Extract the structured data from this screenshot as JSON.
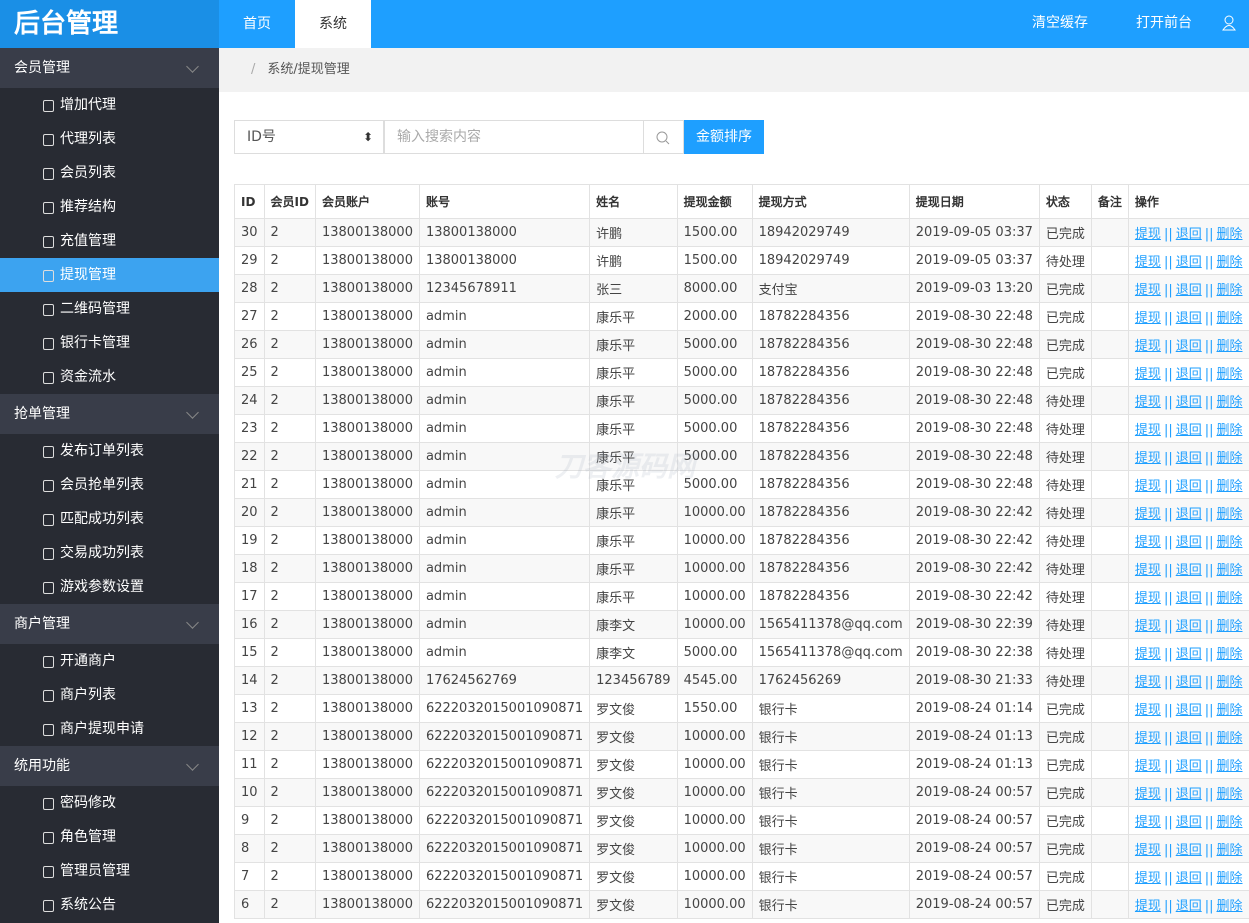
{
  "header": {
    "logo": "后台管理",
    "tabs": [
      "首页",
      "系统"
    ],
    "actions": [
      "清空缓存",
      "打开前台"
    ]
  },
  "sidebar": [
    {
      "title": "会员管理",
      "items": [
        "增加代理",
        "代理列表",
        "会员列表",
        "推荐结构",
        "充值管理",
        "提现管理",
        "二维码管理",
        "银行卡管理",
        "资金流水"
      ]
    },
    {
      "title": "抢单管理",
      "items": [
        "发布订单列表",
        "会员抢单列表",
        "匹配成功列表",
        "交易成功列表",
        "游戏参数设置"
      ]
    },
    {
      "title": "商户管理",
      "items": [
        "开通商户",
        "商户列表",
        "商户提现申请"
      ]
    },
    {
      "title": "统用功能",
      "items": [
        "密码修改",
        "角色管理",
        "管理员管理",
        "系统公告"
      ]
    }
  ],
  "breadcrumb": "系统/提现管理",
  "search": {
    "select": "ID号",
    "placeholder": "输入搜索内容",
    "button": "金额排序"
  },
  "watermark": "刀客源码网",
  "table": {
    "headers": [
      "ID",
      "会员ID",
      "会员账户",
      "账号",
      "姓名",
      "提现金额",
      "提现方式",
      "提现日期",
      "状态",
      "备注",
      "操作"
    ],
    "actions": [
      "提现",
      "退回",
      "删除"
    ],
    "separator": "||",
    "rows": [
      [
        "30",
        "2",
        "13800138000",
        "13800138000",
        "许鹏",
        "1500.00",
        "18942029749",
        "2019-09-05 03:37",
        "已完成"
      ],
      [
        "29",
        "2",
        "13800138000",
        "13800138000",
        "许鹏",
        "1500.00",
        "18942029749",
        "2019-09-05 03:37",
        "待处理"
      ],
      [
        "28",
        "2",
        "13800138000",
        "12345678911",
        "张三",
        "8000.00",
        "支付宝",
        "2019-09-03 13:20",
        "已完成"
      ],
      [
        "27",
        "2",
        "13800138000",
        "admin",
        "康乐平",
        "2000.00",
        "18782284356",
        "2019-08-30 22:48",
        "已完成"
      ],
      [
        "26",
        "2",
        "13800138000",
        "admin",
        "康乐平",
        "5000.00",
        "18782284356",
        "2019-08-30 22:48",
        "已完成"
      ],
      [
        "25",
        "2",
        "13800138000",
        "admin",
        "康乐平",
        "5000.00",
        "18782284356",
        "2019-08-30 22:48",
        "已完成"
      ],
      [
        "24",
        "2",
        "13800138000",
        "admin",
        "康乐平",
        "5000.00",
        "18782284356",
        "2019-08-30 22:48",
        "待处理"
      ],
      [
        "23",
        "2",
        "13800138000",
        "admin",
        "康乐平",
        "5000.00",
        "18782284356",
        "2019-08-30 22:48",
        "待处理"
      ],
      [
        "22",
        "2",
        "13800138000",
        "admin",
        "康乐平",
        "5000.00",
        "18782284356",
        "2019-08-30 22:48",
        "待处理"
      ],
      [
        "21",
        "2",
        "13800138000",
        "admin",
        "康乐平",
        "5000.00",
        "18782284356",
        "2019-08-30 22:48",
        "待处理"
      ],
      [
        "20",
        "2",
        "13800138000",
        "admin",
        "康乐平",
        "10000.00",
        "18782284356",
        "2019-08-30 22:42",
        "待处理"
      ],
      [
        "19",
        "2",
        "13800138000",
        "admin",
        "康乐平",
        "10000.00",
        "18782284356",
        "2019-08-30 22:42",
        "待处理"
      ],
      [
        "18",
        "2",
        "13800138000",
        "admin",
        "康乐平",
        "10000.00",
        "18782284356",
        "2019-08-30 22:42",
        "待处理"
      ],
      [
        "17",
        "2",
        "13800138000",
        "admin",
        "康乐平",
        "10000.00",
        "18782284356",
        "2019-08-30 22:42",
        "待处理"
      ],
      [
        "16",
        "2",
        "13800138000",
        "admin",
        "康李文",
        "10000.00",
        "1565411378@qq.com",
        "2019-08-30 22:39",
        "待处理"
      ],
      [
        "15",
        "2",
        "13800138000",
        "admin",
        "康李文",
        "5000.00",
        "1565411378@qq.com",
        "2019-08-30 22:38",
        "待处理"
      ],
      [
        "14",
        "2",
        "13800138000",
        "17624562769",
        "123456789",
        "4545.00",
        "1762456269",
        "2019-08-30 21:33",
        "待处理"
      ],
      [
        "13",
        "2",
        "13800138000",
        "6222032015001090871",
        "罗文俊",
        "1550.00",
        "银行卡",
        "2019-08-24 01:14",
        "已完成"
      ],
      [
        "12",
        "2",
        "13800138000",
        "6222032015001090871",
        "罗文俊",
        "10000.00",
        "银行卡",
        "2019-08-24 01:13",
        "已完成"
      ],
      [
        "11",
        "2",
        "13800138000",
        "6222032015001090871",
        "罗文俊",
        "10000.00",
        "银行卡",
        "2019-08-24 01:13",
        "已完成"
      ],
      [
        "10",
        "2",
        "13800138000",
        "6222032015001090871",
        "罗文俊",
        "10000.00",
        "银行卡",
        "2019-08-24 00:57",
        "已完成"
      ],
      [
        "9",
        "2",
        "13800138000",
        "6222032015001090871",
        "罗文俊",
        "10000.00",
        "银行卡",
        "2019-08-24 00:57",
        "已完成"
      ],
      [
        "8",
        "2",
        "13800138000",
        "6222032015001090871",
        "罗文俊",
        "10000.00",
        "银行卡",
        "2019-08-24 00:57",
        "已完成"
      ],
      [
        "7",
        "2",
        "13800138000",
        "6222032015001090871",
        "罗文俊",
        "10000.00",
        "银行卡",
        "2019-08-24 00:57",
        "已完成"
      ],
      [
        "6",
        "2",
        "13800138000",
        "6222032015001090871",
        "罗文俊",
        "10000.00",
        "银行卡",
        "2019-08-24 00:57",
        "已完成"
      ]
    ]
  }
}
